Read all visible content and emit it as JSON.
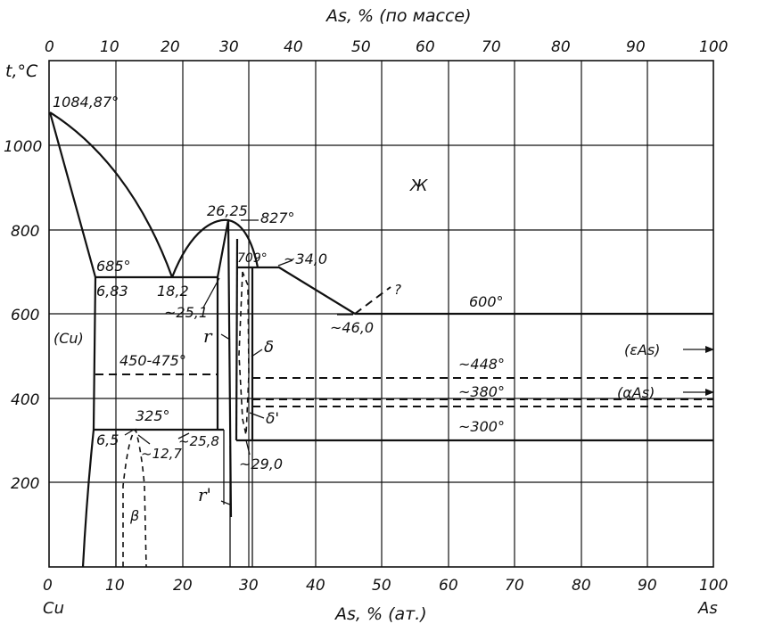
{
  "top_axis": {
    "title": "As, % (по массе)",
    "ticks": [
      "0",
      "10",
      "20",
      "30",
      "40",
      "50",
      "60",
      "70",
      "80",
      "90",
      "100"
    ]
  },
  "bottom_axis": {
    "title": "As, % (ат.)",
    "ticks": [
      "0",
      "10",
      "20",
      "30",
      "40",
      "50",
      "60",
      "70",
      "80",
      "90",
      "100"
    ],
    "left_element": "Cu",
    "right_element": "As"
  },
  "left_axis": {
    "title": "t,°C",
    "ticks": [
      "200",
      "400",
      "600",
      "800",
      "1000"
    ]
  },
  "labels": {
    "cu_melting": "1084,87°",
    "eutectic_left_temp": "685°",
    "eutectic_left_comp": "6,83",
    "eutectic_point": "18,2",
    "compound_comp": "26,25",
    "compound_temp": "827°",
    "peritectic_temp": "709°",
    "peritectic_comp": "~34,0",
    "gamma_limit": "~25,1",
    "liquid": "Ж",
    "eutectic_right": "~46,0",
    "eutectic_right_temp": "600°",
    "question": "?",
    "cu_phase": "(Cu)",
    "range_450_475": "450-475°",
    "gamma": "r",
    "delta": "δ",
    "delta_prime": "δ'",
    "gamma_prime": "r'",
    "beta": "β",
    "t_325": "325°",
    "c_6_5": "6,5",
    "c_12_7": "~12,7",
    "c_25_8": "~25,8",
    "c_29_0": "~29,0",
    "t_448": "~448°",
    "t_380": "~380°",
    "t_300": "~300°",
    "eps_as": "(εAs)",
    "alpha_as": "(αAs)"
  }
}
